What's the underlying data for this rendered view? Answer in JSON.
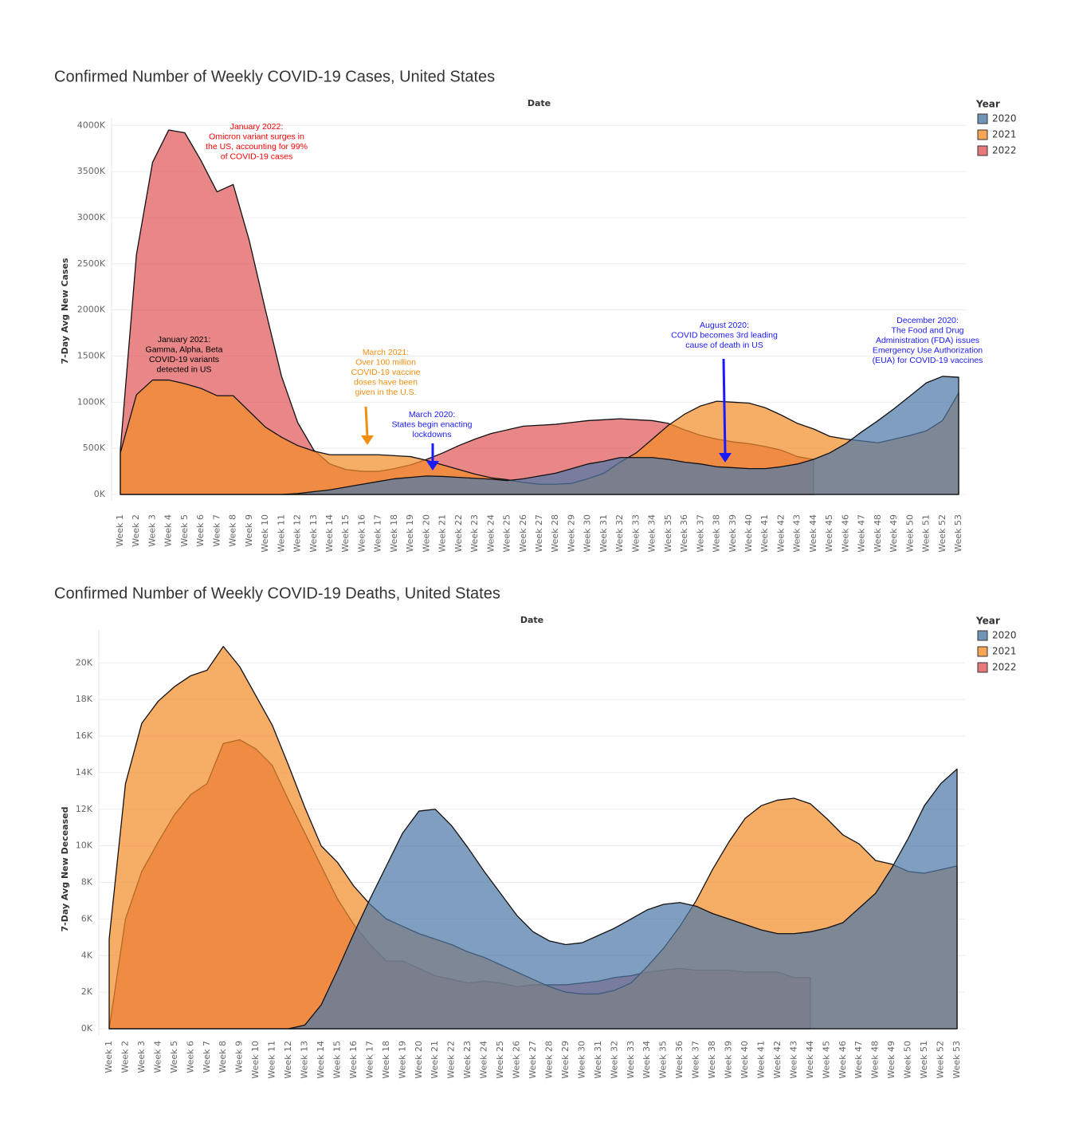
{
  "chart_data": [
    {
      "type": "area",
      "title": "Confirmed Number of Weekly COVID-19 Cases, United States",
      "x_label": "Date",
      "y_label": "7-Day Avg New Cases",
      "legend_title": "Year",
      "legend": "right",
      "categories": [
        "Week 1",
        "Week 2",
        "Week 3",
        "Week 4",
        "Week 5",
        "Week 6",
        "Week 7",
        "Week 8",
        "Week 9",
        "Week 10",
        "Week 11",
        "Week 12",
        "Week 13",
        "Week 14",
        "Week 15",
        "Week 16",
        "Week 17",
        "Week 18",
        "Week 19",
        "Week 20",
        "Week 21",
        "Week 22",
        "Week 23",
        "Week 24",
        "Week 25",
        "Week 26",
        "Week 27",
        "Week 28",
        "Week 29",
        "Week 30",
        "Week 31",
        "Week 32",
        "Week 33",
        "Week 34",
        "Week 35",
        "Week 36",
        "Week 37",
        "Week 38",
        "Week 39",
        "Week 40",
        "Week 41",
        "Week 42",
        "Week 43",
        "Week 44",
        "Week 45",
        "Week 46",
        "Week 47",
        "Week 48",
        "Week 49",
        "Week 50",
        "Week 51",
        "Week 52",
        "Week 53"
      ],
      "series": [
        {
          "name": "2020",
          "color": "#4e79a7",
          "values": [
            0,
            0,
            0,
            0,
            0,
            0,
            0,
            0,
            0,
            0,
            0,
            10,
            30,
            50,
            80,
            110,
            140,
            170,
            185,
            200,
            195,
            185,
            175,
            165,
            150,
            170,
            200,
            230,
            280,
            330,
            360,
            400,
            400,
            400,
            380,
            350,
            330,
            300,
            290,
            280,
            280,
            300,
            330,
            380,
            450,
            550,
            680,
            800,
            930,
            1070,
            1210,
            1280,
            1270
          ]
        },
        {
          "name": "2021",
          "color": "#f28e2b",
          "values": [
            450,
            1080,
            1240,
            1240,
            1200,
            1150,
            1070,
            1070,
            900,
            730,
            620,
            530,
            470,
            430,
            430,
            430,
            430,
            420,
            410,
            370,
            320,
            270,
            220,
            180,
            160,
            130,
            110,
            110,
            120,
            170,
            230,
            350,
            450,
            600,
            750,
            870,
            960,
            1010,
            1000,
            990,
            940,
            860,
            770,
            710,
            630,
            600,
            580,
            560,
            600,
            640,
            690,
            800,
            1100
          ]
        },
        {
          "name": "2022",
          "color": "#e15759",
          "values": [
            480,
            2600,
            3600,
            3950,
            3920,
            3620,
            3280,
            3360,
            2750,
            2000,
            1280,
            780,
            480,
            330,
            270,
            250,
            250,
            280,
            320,
            380,
            450,
            530,
            600,
            660,
            700,
            740,
            750,
            760,
            780,
            800,
            810,
            820,
            810,
            800,
            770,
            700,
            640,
            600,
            570,
            550,
            520,
            480,
            410,
            380,
            null,
            null,
            null,
            null,
            null,
            null,
            null,
            null,
            null
          ]
        }
      ],
      "ylim": [
        0,
        4080
      ],
      "yticks": [
        {
          "value": 0,
          "label": "0K"
        },
        {
          "value": 500,
          "label": "500K"
        },
        {
          "value": 1000,
          "label": "1000K"
        },
        {
          "value": 1500,
          "label": "1500K"
        },
        {
          "value": 2000,
          "label": "2000K"
        },
        {
          "value": 2500,
          "label": "2500K"
        },
        {
          "value": 3000,
          "label": "3000K"
        },
        {
          "value": 3500,
          "label": "3500K"
        },
        {
          "value": 4000,
          "label": "4000K"
        }
      ],
      "grid": true,
      "annotations": [
        {
          "lines": [
            "January 2022:",
            "Omicron variant surges in",
            "the US, accounting for 99%",
            "of COVID-19 cases"
          ],
          "color": "#ff0000"
        },
        {
          "lines": [
            "January 2021:",
            "Gamma, Alpha, Beta",
            "COVID-19 variants",
            "detected in US"
          ],
          "color": "#000000"
        },
        {
          "lines": [
            "March 2021:",
            "Over 100 million",
            "COVID-19 vaccine",
            "doses have been",
            "given in the U.S."
          ],
          "color": "#f28e10"
        },
        {
          "lines": [
            "March 2020:",
            "States begin enacting",
            "lockdowns"
          ],
          "color": "#1a1aff"
        },
        {
          "lines": [
            "August 2020:",
            "COVID becomes 3rd leading",
            "cause of death in US"
          ],
          "color": "#1a1aff"
        },
        {
          "lines": [
            "December 2020:",
            "The Food and Drug",
            "Administration (FDA) issues",
            "Emergency Use Authorization",
            "(EUA) for COVID-19 vaccines"
          ],
          "color": "#1a1aff"
        }
      ]
    },
    {
      "type": "area",
      "title": "Confirmed Number of Weekly COVID-19 Deaths, United States",
      "x_label": "Date",
      "y_label": "7-Day Avg New Deceased",
      "legend_title": "Year",
      "legend": "right",
      "categories": [
        "Week 1",
        "Week 2",
        "Week 3",
        "Week 4",
        "Week 5",
        "Week 6",
        "Week 7",
        "Week 8",
        "Week 9",
        "Week 10",
        "Week 11",
        "Week 12",
        "Week 13",
        "Week 14",
        "Week 15",
        "Week 16",
        "Week 17",
        "Week 18",
        "Week 19",
        "Week 20",
        "Week 21",
        "Week 22",
        "Week 23",
        "Week 24",
        "Week 25",
        "Week 26",
        "Week 27",
        "Week 28",
        "Week 29",
        "Week 30",
        "Week 31",
        "Week 32",
        "Week 33",
        "Week 34",
        "Week 35",
        "Week 36",
        "Week 37",
        "Week 38",
        "Week 39",
        "Week 40",
        "Week 41",
        "Week 42",
        "Week 43",
        "Week 44",
        "Week 45",
        "Week 46",
        "Week 47",
        "Week 48",
        "Week 49",
        "Week 50",
        "Week 51",
        "Week 52",
        "Week 53"
      ],
      "series": [
        {
          "name": "2020",
          "color": "#4e79a7",
          "values": [
            0,
            0,
            0,
            0,
            0,
            0,
            0,
            0,
            0,
            0,
            0,
            0,
            0.2,
            1.3,
            3.2,
            5.2,
            7.1,
            8.9,
            10.7,
            11.9,
            12.0,
            11.1,
            9.9,
            8.6,
            7.4,
            6.2,
            5.3,
            4.8,
            4.6,
            4.7,
            5.1,
            5.5,
            6.0,
            6.5,
            6.8,
            6.9,
            6.7,
            6.3,
            6.0,
            5.7,
            5.4,
            5.2,
            5.2,
            5.3,
            5.5,
            5.8,
            6.6,
            7.4,
            8.8,
            10.4,
            12.2,
            13.4,
            14.2
          ]
        },
        {
          "name": "2021",
          "color": "#f28e2b",
          "values": [
            4.9,
            13.4,
            16.7,
            17.9,
            18.7,
            19.3,
            19.6,
            20.9,
            19.8,
            18.2,
            16.6,
            14.4,
            12.1,
            10.0,
            9.1,
            7.8,
            6.8,
            6.0,
            5.6,
            5.2,
            4.9,
            4.6,
            4.2,
            3.9,
            3.5,
            3.1,
            2.7,
            2.3,
            2.0,
            1.9,
            1.9,
            2.1,
            2.5,
            3.4,
            4.4,
            5.6,
            7.0,
            8.7,
            10.2,
            11.5,
            12.2,
            12.5,
            12.6,
            12.3,
            11.5,
            10.6,
            10.1,
            9.2,
            9.0,
            8.6,
            8.5,
            8.7,
            8.9
          ]
        },
        {
          "name": "2022",
          "color": "#e15759",
          "values": [
            0,
            6.0,
            8.6,
            10.2,
            11.7,
            12.8,
            13.4,
            15.6,
            15.8,
            15.3,
            14.4,
            12.5,
            10.7,
            8.9,
            7.1,
            5.7,
            4.6,
            3.7,
            3.7,
            3.3,
            2.9,
            2.7,
            2.5,
            2.6,
            2.5,
            2.3,
            2.4,
            2.4,
            2.4,
            2.5,
            2.6,
            2.8,
            2.9,
            3.1,
            3.2,
            3.3,
            3.2,
            3.2,
            3.2,
            3.1,
            3.1,
            3.1,
            2.8,
            2.8,
            null,
            null,
            null,
            null,
            null,
            null,
            null,
            null,
            null
          ]
        }
      ],
      "ylim": [
        0,
        21.8
      ],
      "yticks": [
        {
          "value": 0,
          "label": "0K"
        },
        {
          "value": 2,
          "label": "2K"
        },
        {
          "value": 4,
          "label": "4K"
        },
        {
          "value": 6,
          "label": "6K"
        },
        {
          "value": 8,
          "label": "8K"
        },
        {
          "value": 10,
          "label": "10K"
        },
        {
          "value": 12,
          "label": "12K"
        },
        {
          "value": 14,
          "label": "14K"
        },
        {
          "value": 16,
          "label": "16K"
        },
        {
          "value": 18,
          "label": "18K"
        },
        {
          "value": 20,
          "label": "20K"
        }
      ],
      "grid": true
    }
  ]
}
